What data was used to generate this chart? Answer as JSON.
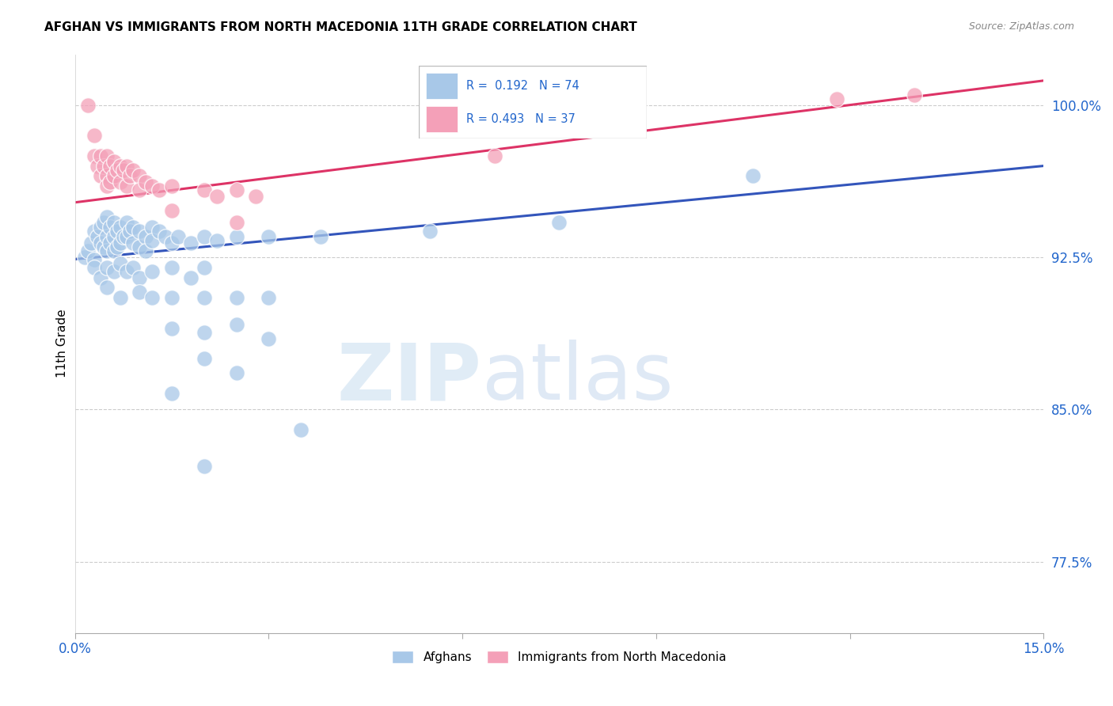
{
  "title": "AFGHAN VS IMMIGRANTS FROM NORTH MACEDONIA 11TH GRADE CORRELATION CHART",
  "source": "Source: ZipAtlas.com",
  "ylabel": "11th Grade",
  "yticks": [
    77.5,
    85.0,
    92.5,
    100.0
  ],
  "ytick_labels": [
    "77.5%",
    "85.0%",
    "92.5%",
    "100.0%"
  ],
  "xmin": 0.0,
  "xmax": 15.0,
  "ymin": 74.0,
  "ymax": 102.5,
  "watermark_zip": "ZIP",
  "watermark_atlas": "atlas",
  "legend_color": "#2266cc",
  "color_blue": "#a8c8e8",
  "color_pink": "#f4a0b8",
  "trendline_blue": "#3355bb",
  "trendline_pink": "#dd3366",
  "blue_trend_x": [
    0.0,
    15.0
  ],
  "blue_trend_y": [
    92.4,
    97.0
  ],
  "pink_trend_x": [
    0.0,
    15.0
  ],
  "pink_trend_y": [
    95.2,
    101.2
  ],
  "blue_scatter": [
    [
      0.15,
      92.5
    ],
    [
      0.2,
      92.8
    ],
    [
      0.25,
      93.2
    ],
    [
      0.3,
      93.8
    ],
    [
      0.3,
      92.4
    ],
    [
      0.35,
      93.5
    ],
    [
      0.4,
      94.0
    ],
    [
      0.4,
      93.2
    ],
    [
      0.45,
      94.2
    ],
    [
      0.45,
      93.0
    ],
    [
      0.5,
      94.5
    ],
    [
      0.5,
      93.5
    ],
    [
      0.5,
      92.8
    ],
    [
      0.55,
      94.0
    ],
    [
      0.55,
      93.2
    ],
    [
      0.6,
      94.2
    ],
    [
      0.6,
      93.5
    ],
    [
      0.6,
      92.8
    ],
    [
      0.65,
      93.8
    ],
    [
      0.65,
      93.0
    ],
    [
      0.7,
      94.0
    ],
    [
      0.7,
      93.2
    ],
    [
      0.75,
      93.5
    ],
    [
      0.8,
      94.2
    ],
    [
      0.8,
      93.5
    ],
    [
      0.85,
      93.8
    ],
    [
      0.9,
      94.0
    ],
    [
      0.9,
      93.2
    ],
    [
      1.0,
      93.8
    ],
    [
      1.0,
      93.0
    ],
    [
      1.1,
      93.5
    ],
    [
      1.1,
      92.8
    ],
    [
      1.2,
      94.0
    ],
    [
      1.2,
      93.3
    ],
    [
      1.3,
      93.8
    ],
    [
      1.4,
      93.5
    ],
    [
      1.5,
      93.2
    ],
    [
      1.6,
      93.5
    ],
    [
      1.8,
      93.2
    ],
    [
      2.0,
      93.5
    ],
    [
      2.2,
      93.3
    ],
    [
      2.5,
      93.5
    ],
    [
      3.0,
      93.5
    ],
    [
      3.8,
      93.5
    ],
    [
      5.5,
      93.8
    ],
    [
      7.5,
      94.2
    ],
    [
      10.5,
      96.5
    ],
    [
      0.3,
      92.0
    ],
    [
      0.4,
      91.5
    ],
    [
      0.5,
      92.0
    ],
    [
      0.6,
      91.8
    ],
    [
      0.7,
      92.2
    ],
    [
      0.8,
      91.8
    ],
    [
      0.9,
      92.0
    ],
    [
      1.0,
      91.5
    ],
    [
      1.2,
      91.8
    ],
    [
      1.5,
      92.0
    ],
    [
      1.8,
      91.5
    ],
    [
      2.0,
      92.0
    ],
    [
      0.5,
      91.0
    ],
    [
      0.7,
      90.5
    ],
    [
      1.0,
      90.8
    ],
    [
      1.2,
      90.5
    ],
    [
      1.5,
      90.5
    ],
    [
      2.0,
      90.5
    ],
    [
      2.5,
      90.5
    ],
    [
      3.0,
      90.5
    ],
    [
      1.5,
      89.0
    ],
    [
      2.0,
      88.8
    ],
    [
      2.5,
      89.2
    ],
    [
      3.0,
      88.5
    ],
    [
      2.0,
      87.5
    ],
    [
      2.5,
      86.8
    ],
    [
      1.5,
      85.8
    ],
    [
      3.5,
      84.0
    ],
    [
      2.0,
      82.2
    ]
  ],
  "pink_scatter": [
    [
      0.2,
      100.0
    ],
    [
      0.3,
      98.5
    ],
    [
      0.3,
      97.5
    ],
    [
      0.35,
      97.0
    ],
    [
      0.4,
      97.5
    ],
    [
      0.4,
      96.5
    ],
    [
      0.45,
      97.0
    ],
    [
      0.5,
      97.5
    ],
    [
      0.5,
      96.5
    ],
    [
      0.5,
      96.0
    ],
    [
      0.55,
      97.0
    ],
    [
      0.55,
      96.2
    ],
    [
      0.6,
      97.2
    ],
    [
      0.6,
      96.5
    ],
    [
      0.65,
      96.8
    ],
    [
      0.7,
      97.0
    ],
    [
      0.7,
      96.2
    ],
    [
      0.75,
      96.8
    ],
    [
      0.8,
      97.0
    ],
    [
      0.8,
      96.0
    ],
    [
      0.85,
      96.5
    ],
    [
      0.9,
      96.8
    ],
    [
      1.0,
      96.5
    ],
    [
      1.0,
      95.8
    ],
    [
      1.1,
      96.2
    ],
    [
      1.2,
      96.0
    ],
    [
      1.3,
      95.8
    ],
    [
      1.5,
      96.0
    ],
    [
      2.0,
      95.8
    ],
    [
      2.2,
      95.5
    ],
    [
      2.5,
      95.8
    ],
    [
      2.8,
      95.5
    ],
    [
      1.5,
      94.8
    ],
    [
      2.5,
      94.2
    ],
    [
      6.5,
      97.5
    ],
    [
      11.8,
      100.3
    ],
    [
      13.0,
      100.5
    ]
  ]
}
